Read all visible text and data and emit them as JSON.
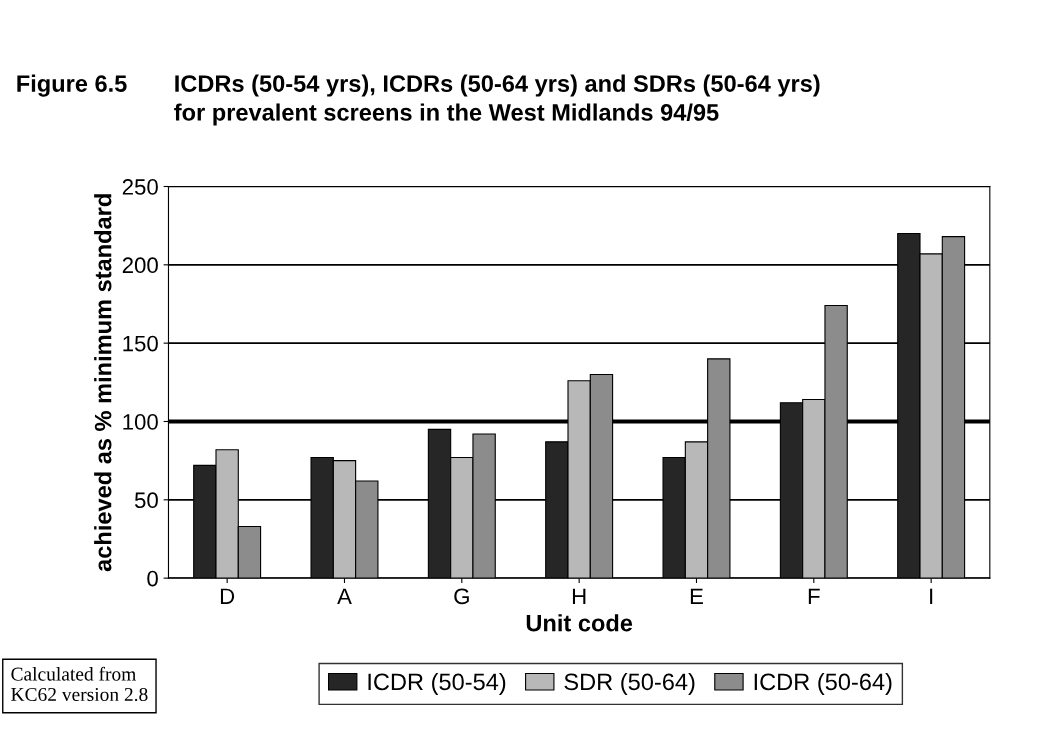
{
  "chart_data": {
    "type": "bar",
    "title": "Figure 6.5",
    "subtitle": "ICDRs (50-54 yrs), ICDRs (50-64 yrs) and SDRs (50-64 yrs)\nfor prevalent screens in the West Midlands 94/95",
    "xlabel": "Unit code",
    "ylabel": "achieved as % minimum standard",
    "categories": [
      "D",
      "A",
      "G",
      "H",
      "E",
      "F",
      "I"
    ],
    "series": [
      {
        "name": "ICDR (50-54)",
        "color": "#262626",
        "values": [
          72,
          77,
          95,
          87,
          77,
          112,
          220
        ]
      },
      {
        "name": "SDR (50-64)",
        "color": "#b8b8b8",
        "values": [
          82,
          75,
          77,
          126,
          87,
          114,
          207
        ]
      },
      {
        "name": "ICDR (50-64)",
        "color": "#8c8c8c",
        "values": [
          33,
          62,
          92,
          130,
          140,
          174,
          218
        ]
      }
    ],
    "ylim": [
      0,
      250
    ],
    "yticks": [
      0,
      50,
      100,
      150,
      200,
      250
    ],
    "grid": "y",
    "ref_lines": [
      {
        "axis": "y",
        "value": 100,
        "color": "#000000"
      }
    ],
    "legend": "bottom",
    "annotations": [
      "Calculated from\nKC62 version 2.8"
    ]
  }
}
